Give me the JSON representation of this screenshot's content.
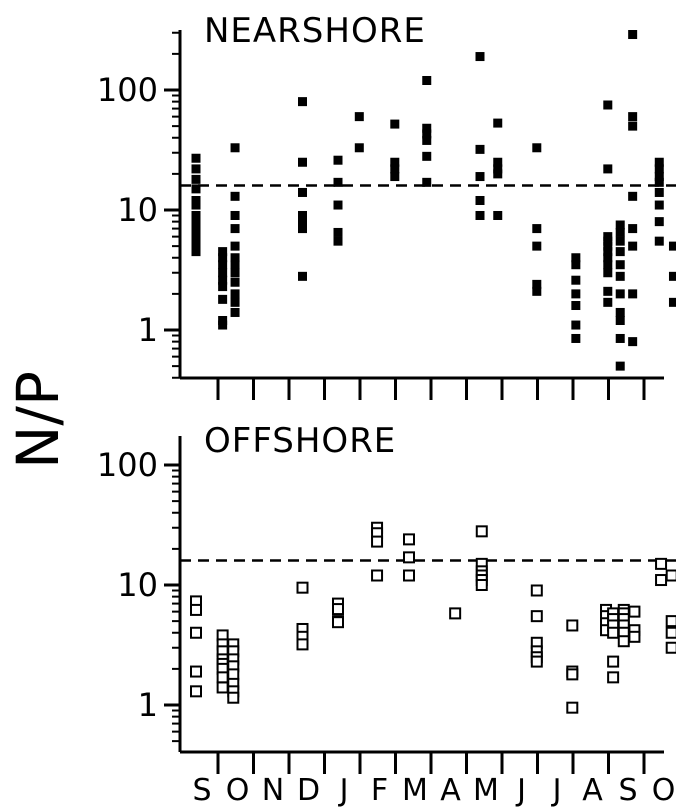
{
  "chart_data": [
    {
      "type": "scatter",
      "title": "NEARSHORE",
      "ylabel": "N/P",
      "yscale": "log",
      "ylim": [
        0.4,
        300
      ],
      "yticks": [
        {
          "value": 1,
          "label": "1"
        },
        {
          "value": 10,
          "label": "10"
        },
        {
          "value": 100,
          "label": "100"
        }
      ],
      "categories": [
        "S",
        "O",
        "N",
        "D",
        "J",
        "F",
        "M",
        "A",
        "M",
        "J",
        "J",
        "A",
        "S",
        "O"
      ],
      "reference_line": {
        "y": 16,
        "style": "dashed"
      },
      "marker": "filled-square",
      "points": [
        {
          "x": 0,
          "y": 27
        },
        {
          "x": 0,
          "y": 22
        },
        {
          "x": 0,
          "y": 18
        },
        {
          "x": 0,
          "y": 15
        },
        {
          "x": 0,
          "y": 12
        },
        {
          "x": 0,
          "y": 11
        },
        {
          "x": 0,
          "y": 9
        },
        {
          "x": 0,
          "y": 8
        },
        {
          "x": 0,
          "y": 7
        },
        {
          "x": 0,
          "y": 6
        },
        {
          "x": 0,
          "y": 5.5
        },
        {
          "x": 0,
          "y": 5
        },
        {
          "x": 0,
          "y": 4.5
        },
        {
          "x": 0.75,
          "y": 4.5
        },
        {
          "x": 0.75,
          "y": 4
        },
        {
          "x": 0.75,
          "y": 3.5
        },
        {
          "x": 0.75,
          "y": 3
        },
        {
          "x": 0.75,
          "y": 2.6
        },
        {
          "x": 0.75,
          "y": 2.3
        },
        {
          "x": 0.75,
          "y": 1.8
        },
        {
          "x": 0.75,
          "y": 1.2
        },
        {
          "x": 0.75,
          "y": 1.1
        },
        {
          "x": 1.1,
          "y": 33
        },
        {
          "x": 1.1,
          "y": 13
        },
        {
          "x": 1.1,
          "y": 9
        },
        {
          "x": 1.1,
          "y": 7
        },
        {
          "x": 1.1,
          "y": 5
        },
        {
          "x": 1.1,
          "y": 4
        },
        {
          "x": 1.1,
          "y": 3.5
        },
        {
          "x": 1.1,
          "y": 3
        },
        {
          "x": 1.1,
          "y": 2.5
        },
        {
          "x": 1.1,
          "y": 2
        },
        {
          "x": 1.1,
          "y": 1.7
        },
        {
          "x": 1.1,
          "y": 1.4
        },
        {
          "x": 3,
          "y": 80
        },
        {
          "x": 3,
          "y": 25
        },
        {
          "x": 3,
          "y": 14
        },
        {
          "x": 3,
          "y": 9
        },
        {
          "x": 3,
          "y": 8
        },
        {
          "x": 3,
          "y": 7
        },
        {
          "x": 3,
          "y": 2.8
        },
        {
          "x": 4,
          "y": 26
        },
        {
          "x": 4,
          "y": 17
        },
        {
          "x": 4,
          "y": 11
        },
        {
          "x": 4,
          "y": 6.5
        },
        {
          "x": 4,
          "y": 5.5
        },
        {
          "x": 4.6,
          "y": 60
        },
        {
          "x": 4.6,
          "y": 33
        },
        {
          "x": 5.6,
          "y": 52
        },
        {
          "x": 5.6,
          "y": 25
        },
        {
          "x": 5.6,
          "y": 22
        },
        {
          "x": 5.6,
          "y": 19
        },
        {
          "x": 6.5,
          "y": 120
        },
        {
          "x": 6.5,
          "y": 48
        },
        {
          "x": 6.5,
          "y": 43
        },
        {
          "x": 6.5,
          "y": 38
        },
        {
          "x": 6.5,
          "y": 28
        },
        {
          "x": 6.5,
          "y": 17
        },
        {
          "x": 8,
          "y": 190
        },
        {
          "x": 8,
          "y": 32
        },
        {
          "x": 8,
          "y": 19
        },
        {
          "x": 8,
          "y": 12
        },
        {
          "x": 8,
          "y": 9
        },
        {
          "x": 8.5,
          "y": 53
        },
        {
          "x": 8.5,
          "y": 25
        },
        {
          "x": 8.5,
          "y": 22
        },
        {
          "x": 8.5,
          "y": 20
        },
        {
          "x": 8.5,
          "y": 9
        },
        {
          "x": 9.6,
          "y": 33
        },
        {
          "x": 9.6,
          "y": 7
        },
        {
          "x": 9.6,
          "y": 5
        },
        {
          "x": 9.6,
          "y": 2.4
        },
        {
          "x": 9.6,
          "y": 2.1
        },
        {
          "x": 10.7,
          "y": 4
        },
        {
          "x": 10.7,
          "y": 3.5
        },
        {
          "x": 10.7,
          "y": 2.6
        },
        {
          "x": 10.7,
          "y": 2
        },
        {
          "x": 10.7,
          "y": 1.6
        },
        {
          "x": 10.7,
          "y": 1.1
        },
        {
          "x": 10.7,
          "y": 0.85
        },
        {
          "x": 11.6,
          "y": 75
        },
        {
          "x": 11.6,
          "y": 22
        },
        {
          "x": 11.6,
          "y": 6
        },
        {
          "x": 11.6,
          "y": 5.5
        },
        {
          "x": 11.6,
          "y": 5
        },
        {
          "x": 11.6,
          "y": 4.5
        },
        {
          "x": 11.6,
          "y": 4
        },
        {
          "x": 11.6,
          "y": 3.5
        },
        {
          "x": 11.6,
          "y": 3
        },
        {
          "x": 11.6,
          "y": 2.1
        },
        {
          "x": 11.6,
          "y": 1.7
        },
        {
          "x": 11.95,
          "y": 7.5
        },
        {
          "x": 11.95,
          "y": 6.5
        },
        {
          "x": 11.95,
          "y": 5.5
        },
        {
          "x": 11.95,
          "y": 4.5
        },
        {
          "x": 11.95,
          "y": 3.5
        },
        {
          "x": 11.95,
          "y": 2.8
        },
        {
          "x": 11.95,
          "y": 2
        },
        {
          "x": 11.95,
          "y": 1.4
        },
        {
          "x": 11.95,
          "y": 1.2
        },
        {
          "x": 11.95,
          "y": 0.85
        },
        {
          "x": 11.95,
          "y": 0.5
        },
        {
          "x": 12.3,
          "y": 290
        },
        {
          "x": 12.3,
          "y": 60
        },
        {
          "x": 12.3,
          "y": 50
        },
        {
          "x": 12.3,
          "y": 13
        },
        {
          "x": 12.3,
          "y": 7
        },
        {
          "x": 12.3,
          "y": 5
        },
        {
          "x": 12.3,
          "y": 2
        },
        {
          "x": 12.3,
          "y": 0.8
        },
        {
          "x": 13.05,
          "y": 25
        },
        {
          "x": 13.05,
          "y": 22
        },
        {
          "x": 13.05,
          "y": 19
        },
        {
          "x": 13.05,
          "y": 17
        },
        {
          "x": 13.05,
          "y": 14
        },
        {
          "x": 13.05,
          "y": 11
        },
        {
          "x": 13.05,
          "y": 8
        },
        {
          "x": 13.05,
          "y": 5.5
        },
        {
          "x": 13.45,
          "y": 5
        },
        {
          "x": 13.45,
          "y": 2.8
        },
        {
          "x": 13.45,
          "y": 1.7
        }
      ]
    },
    {
      "type": "scatter",
      "title": "OFFSHORE",
      "ylabel": "N/P",
      "yscale": "log",
      "ylim": [
        0.4,
        300
      ],
      "yticks": [
        {
          "value": 1,
          "label": "1"
        },
        {
          "value": 10,
          "label": "10"
        },
        {
          "value": 100,
          "label": "100"
        }
      ],
      "categories": [
        "S",
        "O",
        "N",
        "D",
        "J",
        "F",
        "M",
        "A",
        "M",
        "J",
        "J",
        "A",
        "S",
        "O"
      ],
      "reference_line": {
        "y": 16,
        "style": "dashed"
      },
      "marker": "open-square",
      "points": [
        {
          "x": 0,
          "y": 7.3
        },
        {
          "x": 0,
          "y": 6.2
        },
        {
          "x": 0,
          "y": 4
        },
        {
          "x": 0,
          "y": 1.9
        },
        {
          "x": 0,
          "y": 1.3
        },
        {
          "x": 0.75,
          "y": 3.8
        },
        {
          "x": 0.75,
          "y": 3.2
        },
        {
          "x": 0.75,
          "y": 2.8
        },
        {
          "x": 0.75,
          "y": 2.4
        },
        {
          "x": 0.75,
          "y": 2.2
        },
        {
          "x": 0.75,
          "y": 2
        },
        {
          "x": 0.75,
          "y": 1.7
        },
        {
          "x": 0.75,
          "y": 1.4
        },
        {
          "x": 1.05,
          "y": 3.2
        },
        {
          "x": 1.05,
          "y": 2.8
        },
        {
          "x": 1.05,
          "y": 2.4
        },
        {
          "x": 1.05,
          "y": 2.1
        },
        {
          "x": 1.05,
          "y": 1.8
        },
        {
          "x": 1.05,
          "y": 1.5
        },
        {
          "x": 1.05,
          "y": 1.3
        },
        {
          "x": 1.05,
          "y": 1.15
        },
        {
          "x": 3,
          "y": 9.5
        },
        {
          "x": 3,
          "y": 4.3
        },
        {
          "x": 3,
          "y": 3.7
        },
        {
          "x": 3,
          "y": 3.2
        },
        {
          "x": 4,
          "y": 7
        },
        {
          "x": 4,
          "y": 6.3
        },
        {
          "x": 4,
          "y": 5
        },
        {
          "x": 4,
          "y": 4.9
        },
        {
          "x": 5.1,
          "y": 30
        },
        {
          "x": 5.1,
          "y": 27
        },
        {
          "x": 5.1,
          "y": 23
        },
        {
          "x": 5.1,
          "y": 12
        },
        {
          "x": 6,
          "y": 24
        },
        {
          "x": 6,
          "y": 17
        },
        {
          "x": 6,
          "y": 12
        },
        {
          "x": 7.3,
          "y": 5.8
        },
        {
          "x": 8.05,
          "y": 28
        },
        {
          "x": 8.05,
          "y": 15
        },
        {
          "x": 8.05,
          "y": 13
        },
        {
          "x": 8.05,
          "y": 12
        },
        {
          "x": 8.05,
          "y": 11
        },
        {
          "x": 8.05,
          "y": 10
        },
        {
          "x": 9.6,
          "y": 9
        },
        {
          "x": 9.6,
          "y": 5.5
        },
        {
          "x": 9.6,
          "y": 3.3
        },
        {
          "x": 9.6,
          "y": 2.8
        },
        {
          "x": 9.6,
          "y": 2.5
        },
        {
          "x": 9.6,
          "y": 2.3
        },
        {
          "x": 10.6,
          "y": 4.6
        },
        {
          "x": 10.6,
          "y": 1.9
        },
        {
          "x": 10.6,
          "y": 1.8
        },
        {
          "x": 10.6,
          "y": 0.95
        },
        {
          "x": 11.55,
          "y": 6.2
        },
        {
          "x": 11.55,
          "y": 5.5
        },
        {
          "x": 11.55,
          "y": 4.8
        },
        {
          "x": 11.55,
          "y": 4.2
        },
        {
          "x": 11.75,
          "y": 5.8
        },
        {
          "x": 11.75,
          "y": 5.2
        },
        {
          "x": 11.75,
          "y": 4.6
        },
        {
          "x": 11.75,
          "y": 4
        },
        {
          "x": 11.75,
          "y": 2.3
        },
        {
          "x": 11.75,
          "y": 1.7
        },
        {
          "x": 12.05,
          "y": 6.2
        },
        {
          "x": 12.05,
          "y": 5.8
        },
        {
          "x": 12.05,
          "y": 5.2
        },
        {
          "x": 12.05,
          "y": 4.6
        },
        {
          "x": 12.05,
          "y": 4
        },
        {
          "x": 12.05,
          "y": 3.4
        },
        {
          "x": 12.35,
          "y": 6
        },
        {
          "x": 12.35,
          "y": 4.2
        },
        {
          "x": 12.35,
          "y": 3.7
        },
        {
          "x": 13.1,
          "y": 15
        },
        {
          "x": 13.1,
          "y": 11
        },
        {
          "x": 13.4,
          "y": 12
        },
        {
          "x": 13.4,
          "y": 5
        },
        {
          "x": 13.4,
          "y": 4
        },
        {
          "x": 13.4,
          "y": 3
        }
      ]
    }
  ]
}
